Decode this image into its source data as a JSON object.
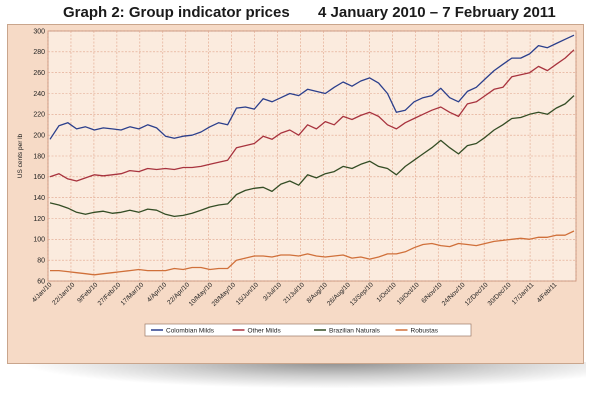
{
  "header": {
    "title": "Graph 2: Group indicator prices",
    "date_range": "4 January 2010 – 7 February 2011"
  },
  "colors": {
    "frame_bg": "#f6dac6",
    "plot_bg": "#fbebde",
    "grid": "#e0a48a",
    "colombian": "#2b3f8c",
    "other": "#a8333e",
    "brazilian": "#344d25",
    "robustas": "#d0703a"
  },
  "chart_data": {
    "type": "line",
    "title": "Graph 2: Group indicator prices",
    "subtitle": "4 January 2010 – 7 February 2011",
    "xlabel": "",
    "ylabel": "US cents per lb",
    "ylim": [
      60,
      300
    ],
    "yticks": [
      "60",
      "80",
      "100",
      "120",
      "140",
      "160",
      "180",
      "200",
      "220",
      "240",
      "260",
      "280",
      "300"
    ],
    "grid": true,
    "legend_position": "bottom",
    "x_tick_labels": [
      "4/Jan/10",
      "22/Jan/10",
      "9/Feb/10",
      "27/Feb/10",
      "17/Mar/10",
      "4/Apr/10",
      "22/Apr/10",
      "10/May/10",
      "28/May/10",
      "15/Jun/10",
      "3/Jul/10",
      "21/Jul/10",
      "8/Aug/10",
      "26/Aug/10",
      "13/Sep/10",
      "1/Oct/10",
      "19/Oct/10",
      "6/Nov/10",
      "24/Nov/10",
      "12/Dec/10",
      "30/Dec/10",
      "17/Jan/11",
      "4/Feb/11"
    ],
    "series": [
      {
        "name": "Colombian Milds",
        "color": "#2b3f8c",
        "values": [
          196,
          209,
          212,
          206,
          208,
          205,
          207,
          206,
          205,
          208,
          206,
          210,
          207,
          199,
          197,
          199,
          200,
          203,
          208,
          212,
          210,
          226,
          227,
          225,
          235,
          232,
          236,
          240,
          238,
          244,
          242,
          240,
          246,
          251,
          247,
          252,
          255,
          250,
          240,
          222,
          224,
          232,
          236,
          238,
          245,
          236,
          232,
          242,
          246,
          254,
          262,
          268,
          274,
          274,
          278,
          286,
          284,
          288,
          292,
          296
        ]
      },
      {
        "name": "Other Milds",
        "color": "#a8333e",
        "values": [
          160,
          163,
          158,
          156,
          159,
          162,
          161,
          162,
          163,
          166,
          165,
          168,
          167,
          168,
          167,
          169,
          169,
          170,
          172,
          174,
          176,
          188,
          190,
          192,
          199,
          196,
          202,
          205,
          200,
          210,
          206,
          213,
          210,
          218,
          215,
          219,
          222,
          218,
          210,
          206,
          212,
          216,
          220,
          224,
          227,
          222,
          218,
          230,
          232,
          238,
          244,
          246,
          256,
          258,
          260,
          266,
          262,
          268,
          274,
          282
        ]
      },
      {
        "name": "Brazilian Naturals",
        "color": "#344d25",
        "values": [
          135,
          133,
          130,
          126,
          124,
          126,
          127,
          125,
          126,
          128,
          126,
          129,
          128,
          124,
          122,
          123,
          125,
          128,
          131,
          133,
          134,
          143,
          147,
          149,
          150,
          146,
          153,
          156,
          152,
          162,
          159,
          163,
          165,
          170,
          168,
          172,
          175,
          170,
          168,
          162,
          170,
          176,
          182,
          188,
          195,
          188,
          182,
          190,
          192,
          198,
          205,
          210,
          216,
          217,
          220,
          222,
          220,
          226,
          230,
          238
        ]
      },
      {
        "name": "Robustas",
        "color": "#d0703a",
        "values": [
          70,
          70,
          69,
          68,
          67,
          66,
          67,
          68,
          69,
          70,
          71,
          70,
          70,
          70,
          72,
          71,
          73,
          73,
          71,
          72,
          72,
          80,
          82,
          84,
          84,
          83,
          85,
          85,
          84,
          86,
          84,
          83,
          84,
          85,
          82,
          83,
          81,
          83,
          86,
          86,
          88,
          92,
          95,
          96,
          94,
          93,
          96,
          95,
          94,
          96,
          98,
          99,
          100,
          101,
          100,
          102,
          102,
          104,
          104,
          108
        ]
      }
    ]
  }
}
